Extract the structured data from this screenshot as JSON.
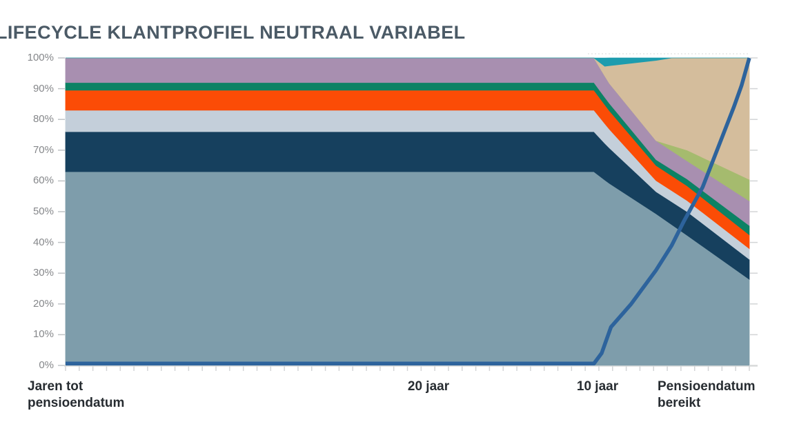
{
  "chart_data": {
    "type": "area",
    "stacked": true,
    "title": "LIFECYCLE KLANTPROFIEL NEUTRAAL VARIABEL",
    "x_axis": {
      "range_years": [
        44,
        0
      ],
      "labels": [
        {
          "text": "Jaren tot pensioendatum"
        },
        {
          "text": "20 jaar"
        },
        {
          "text": "10 jaar"
        },
        {
          "text": "Pensioendatum bereikt"
        }
      ]
    },
    "y_axis": {
      "min": 0,
      "max": 100,
      "tick_labels_top_to_bottom": [
        "100%",
        "90%",
        "80%",
        "70%",
        "60%",
        "50%",
        "40%",
        "30%",
        "20%",
        "10%",
        "0%"
      ]
    },
    "years": [
      44,
      10,
      9.3,
      9,
      6,
      5,
      4,
      0
    ],
    "series": [
      {
        "name": "steel-blue",
        "color": "#7e9dab",
        "values": [
          63,
          63,
          60.3,
          59.2,
          49.3,
          45.8,
          42.3,
          28
        ]
      },
      {
        "name": "dark-navy",
        "color": "#16405e",
        "values": [
          13,
          13,
          11.95,
          11.5,
          7.2,
          7.45,
          7.7,
          6.5
        ]
      },
      {
        "name": "light-gray-blue",
        "color": "#c4cfda",
        "values": [
          7,
          7,
          6.4,
          6.1,
          3.6,
          3.6,
          3.6,
          3.5
        ]
      },
      {
        "name": "orange",
        "color": "#fb4c06",
        "values": [
          6.5,
          6.5,
          6.15,
          6.0,
          4.9,
          4.85,
          4.8,
          4.5
        ]
      },
      {
        "name": "green",
        "color": "#0c8264",
        "values": [
          2.5,
          2.5,
          2.43,
          2.4,
          1.9,
          2.05,
          2.2,
          3.0
        ]
      },
      {
        "name": "purple",
        "color": "#a88fb0",
        "values": [
          8,
          8,
          6.95,
          6.5,
          6.2,
          6.05,
          5.9,
          8.0
        ]
      },
      {
        "name": "olive-green",
        "color": "#a5bb6e",
        "values": [
          0,
          0,
          0,
          0,
          0,
          1.75,
          3.5,
          7.0
        ]
      },
      {
        "name": "tan",
        "color": "#d4bd9c",
        "values": [
          0,
          0,
          3.1,
          5.8,
          26.1,
          28.45,
          30.0,
          39.5
        ]
      },
      {
        "name": "teal",
        "color": "#1d9cae",
        "values": [
          0,
          0,
          2.7,
          2.5,
          0.8,
          0,
          0,
          0
        ]
      }
    ],
    "line_overlay": {
      "name": "projection-line",
      "color": "#2d639c",
      "points_year_pct": [
        [
          44,
          0.6
        ],
        [
          10,
          0.6
        ],
        [
          9.5,
          4
        ],
        [
          8.9,
          12.5
        ],
        [
          7.6,
          20
        ],
        [
          6,
          31
        ],
        [
          5,
          39
        ],
        [
          4.2,
          47
        ],
        [
          3,
          58
        ],
        [
          2,
          71
        ],
        [
          1,
          84
        ],
        [
          0.5,
          91
        ],
        [
          0,
          100
        ]
      ]
    }
  }
}
